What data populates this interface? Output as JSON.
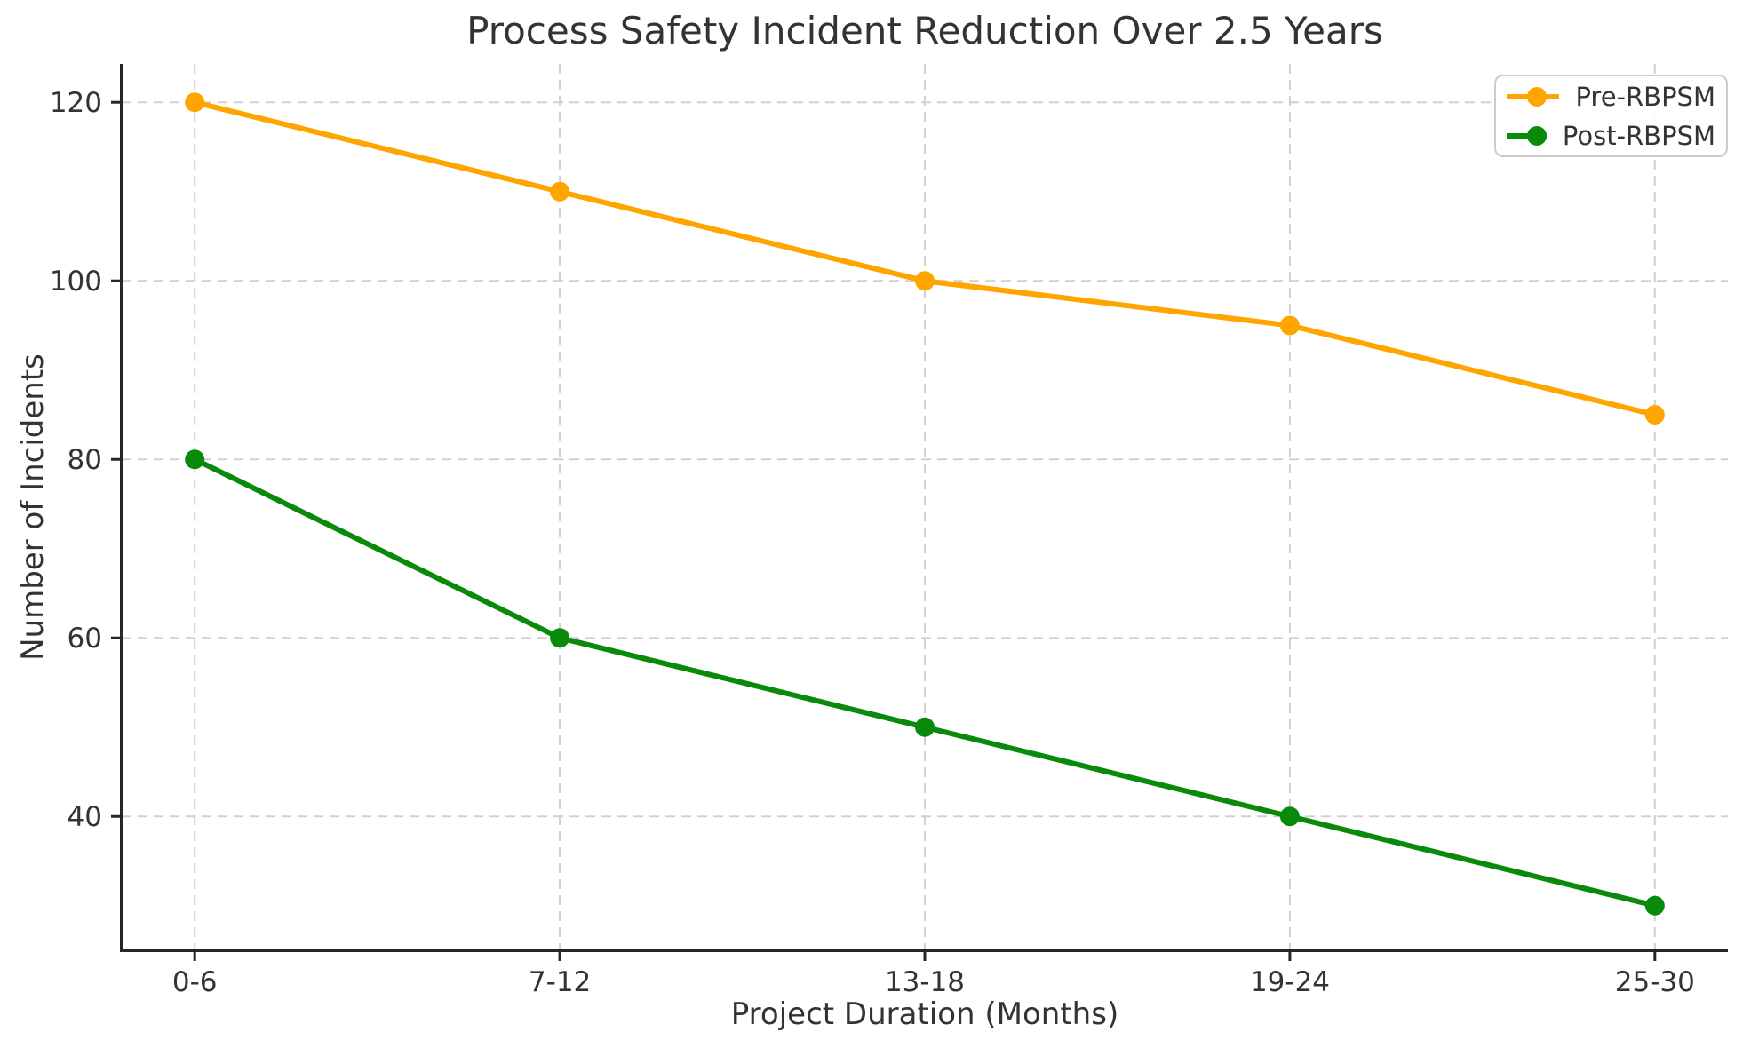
{
  "chart_data": {
    "type": "line",
    "title": "Process Safety Incident Reduction Over 2.5 Years",
    "xlabel": "Project Duration (Months)",
    "ylabel": "Number of Incidents",
    "categories": [
      "0-6",
      "7-12",
      "13-18",
      "19-24",
      "25-30"
    ],
    "series": [
      {
        "name": "Pre-RBPSM",
        "color": "#FFA500",
        "values": [
          120,
          110,
          100,
          95,
          85
        ]
      },
      {
        "name": "Post-RBPSM",
        "color": "#0A8A0A",
        "values": [
          80,
          60,
          50,
          40,
          30
        ]
      }
    ],
    "yticks": [
      40,
      60,
      80,
      100,
      120
    ],
    "ylim": [
      25,
      124.3
    ],
    "grid": true,
    "grid_style": "dashed",
    "legend_position": "upper right"
  },
  "colors": {
    "grid": "#d0d0d0",
    "spine": "#262626",
    "tick_label": "#333333",
    "text": "#333333",
    "legend_border": "#cccccc",
    "background": "#ffffff"
  }
}
